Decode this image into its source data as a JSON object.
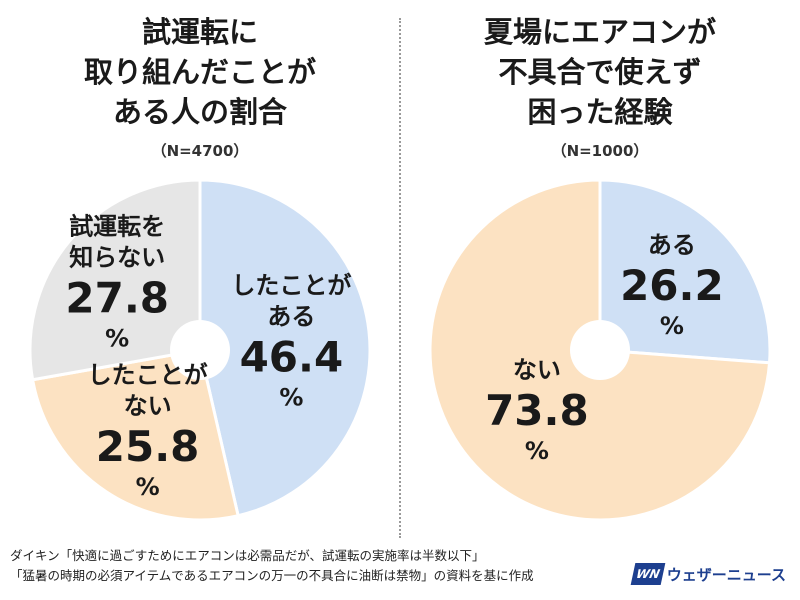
{
  "chart_data": [
    {
      "type": "pie",
      "title_lines": [
        "試運転に",
        "取り組んだことが",
        "ある人の割合"
      ],
      "sample_label": "（N=4700）",
      "slices": [
        {
          "label_lines": [
            "したことが",
            "ある"
          ],
          "value": 46.4,
          "unit": "%",
          "color": "#cfe0f5"
        },
        {
          "label_lines": [
            "したことが",
            "ない"
          ],
          "value": 25.8,
          "unit": "%",
          "color": "#fce2c2"
        },
        {
          "label_lines": [
            "試運転を",
            "知らない"
          ],
          "value": 27.8,
          "unit": "%",
          "color": "#e6e6e6"
        }
      ]
    },
    {
      "type": "pie",
      "title_lines": [
        "夏場にエアコンが",
        "不具合で使えず",
        "困った経験"
      ],
      "sample_label": "（N=1000）",
      "slices": [
        {
          "label_lines": [
            "ある"
          ],
          "value": 26.2,
          "unit": "%",
          "color": "#cfe0f5"
        },
        {
          "label_lines": [
            "ない"
          ],
          "value": 73.8,
          "unit": "%",
          "color": "#fce2c2"
        }
      ]
    }
  ],
  "footer": {
    "line1": "ダイキン「快適に過ごすためにエアコンは必需品だが、試運転の実施率は半数以下」",
    "line2": "「猛暑の時期の必須アイテムであるエアコンの万一の不具合に油断は禁物」の資料を基に作成"
  },
  "brand": {
    "mark": "WN",
    "name": "ウェザーニュース",
    "color": "#1d3f8f"
  }
}
